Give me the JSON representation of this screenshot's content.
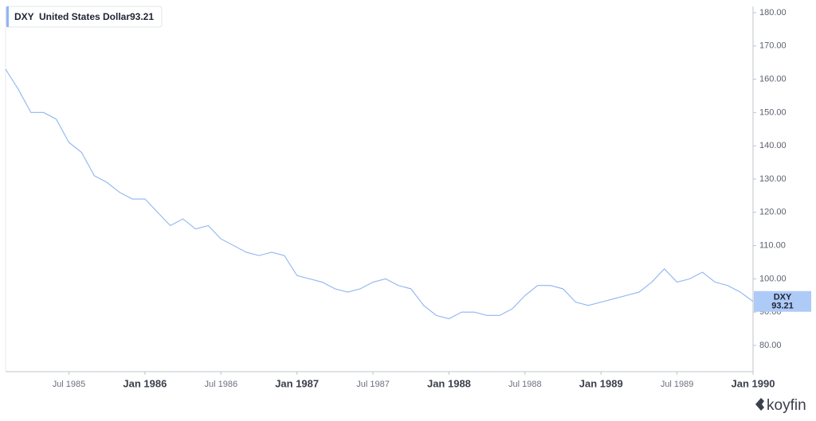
{
  "chart_data": {
    "type": "line",
    "symbol": "DXY",
    "description": "United States Dollar",
    "brand": "koyfin",
    "x": [
      "1985-02",
      "1985-03",
      "1985-04",
      "1985-05",
      "1985-06",
      "1985-07",
      "1985-08",
      "1985-09",
      "1985-10",
      "1985-11",
      "1985-12",
      "1986-01",
      "1986-02",
      "1986-03",
      "1986-04",
      "1986-05",
      "1986-06",
      "1986-07",
      "1986-08",
      "1986-09",
      "1986-10",
      "1986-11",
      "1986-12",
      "1987-01",
      "1987-02",
      "1987-03",
      "1987-04",
      "1987-05",
      "1987-06",
      "1987-07",
      "1987-08",
      "1987-09",
      "1987-10",
      "1987-11",
      "1987-12",
      "1988-01",
      "1988-02",
      "1988-03",
      "1988-04",
      "1988-05",
      "1988-06",
      "1988-07",
      "1988-08",
      "1988-09",
      "1988-10",
      "1988-11",
      "1988-12",
      "1989-01",
      "1989-02",
      "1989-03",
      "1989-04",
      "1989-05",
      "1989-06",
      "1989-07",
      "1989-08",
      "1989-09",
      "1989-10",
      "1989-11",
      "1989-12",
      "1990-01"
    ],
    "series": [
      {
        "name": "DXY",
        "color": "#8fb5f2",
        "values": [
          163,
          157,
          150,
          150,
          148,
          141,
          138,
          131,
          129,
          126,
          124,
          124,
          120,
          116,
          118,
          115,
          116,
          112,
          110,
          108,
          107,
          108,
          107,
          101,
          100,
          99,
          97,
          96,
          97,
          99,
          100,
          98,
          97,
          92,
          89,
          88,
          90,
          90,
          89,
          89,
          91,
          95,
          98,
          98,
          97,
          93,
          92,
          93,
          94,
          95,
          96,
          99,
          103,
          99,
          100,
          102,
          99,
          98,
          96,
          93.21
        ]
      }
    ],
    "xlim": [
      "1985-02",
      "1990-01"
    ],
    "xticks": [
      {
        "value": "1985-07",
        "label": "Jul 1985"
      },
      {
        "value": "1986-01",
        "label": "Jan 1986"
      },
      {
        "value": "1986-07",
        "label": "Jul 1986"
      },
      {
        "value": "1987-01",
        "label": "Jan 1987"
      },
      {
        "value": "1987-07",
        "label": "Jul 1987"
      },
      {
        "value": "1988-01",
        "label": "Jan 1988"
      },
      {
        "value": "1988-07",
        "label": "Jul 1988"
      },
      {
        "value": "1989-01",
        "label": "Jan 1989"
      },
      {
        "value": "1989-07",
        "label": "Jul 1989"
      },
      {
        "value": "1990-01",
        "label": "Jan 1990"
      }
    ],
    "ylim": [
      72.1,
      181.9
    ],
    "yticks": [
      {
        "value": 80,
        "label": "80.00"
      },
      {
        "value": 90,
        "label": "90.00"
      },
      {
        "value": 100,
        "label": "100.00"
      },
      {
        "value": 110,
        "label": "110.00"
      },
      {
        "value": 120,
        "label": "120.00"
      },
      {
        "value": 130,
        "label": "130.00"
      },
      {
        "value": 140,
        "label": "140.00"
      },
      {
        "value": 150,
        "label": "150.00"
      },
      {
        "value": 160,
        "label": "160.00"
      },
      {
        "value": 170,
        "label": "170.00"
      },
      {
        "value": 180,
        "label": "180.00"
      }
    ],
    "grid": false
  }
}
